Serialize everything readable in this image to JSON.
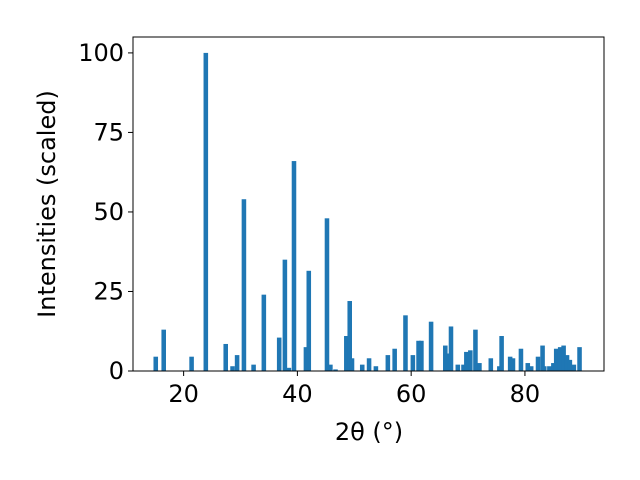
{
  "chart_data": {
    "type": "bar",
    "title": "",
    "xlabel": "2θ (°)",
    "ylabel": "Intensities (scaled)",
    "xlim": [
      11.1,
      93.9
    ],
    "ylim": [
      0,
      105
    ],
    "x_ticks": [
      "20",
      "40",
      "60",
      "80"
    ],
    "y_ticks": [
      "0",
      "25",
      "50",
      "75",
      "100"
    ],
    "grid": false,
    "bar_color": "#1f77b4",
    "x": [
      15.1,
      16.5,
      21.4,
      23.9,
      27.4,
      28.6,
      29.4,
      30.6,
      32.3,
      34.1,
      36.8,
      37.8,
      38.5,
      39.4,
      41.5,
      42.0,
      45.2,
      45.8,
      46.7,
      48.6,
      49.2,
      49.6,
      51.4,
      52.6,
      53.8,
      55.9,
      57.1,
      59.0,
      60.3,
      61.3,
      61.8,
      63.5,
      66.0,
      66.6,
      67.0,
      68.2,
      69.2,
      69.7,
      70.4,
      71.3,
      72.0,
      74.0,
      75.5,
      75.9,
      77.4,
      77.9,
      79.3,
      80.5,
      81.1,
      82.3,
      83.1,
      83.4,
      84.3,
      85.0,
      85.5,
      86.2,
      86.8,
      87.4,
      87.9,
      88.6,
      89.6
    ],
    "values": [
      4.5,
      13,
      4.5,
      100,
      8.5,
      1.5,
      5,
      54,
      2,
      24,
      10.5,
      35,
      1,
      66,
      7.5,
      31.5,
      48,
      2,
      0.5,
      11,
      22,
      4,
      2,
      4,
      1.5,
      5,
      7,
      17.5,
      5,
      9.5,
      9.5,
      15.5,
      8,
      5.5,
      14,
      2,
      2,
      6,
      6.5,
      13,
      2.5,
      4,
      1.5,
      11,
      4.5,
      4,
      7,
      2.5,
      1.5,
      4.5,
      8,
      1.5,
      1.5,
      2.5,
      7,
      7.5,
      8,
      5,
      3.5,
      2,
      7.5
    ],
    "bar_width": 0.8
  }
}
